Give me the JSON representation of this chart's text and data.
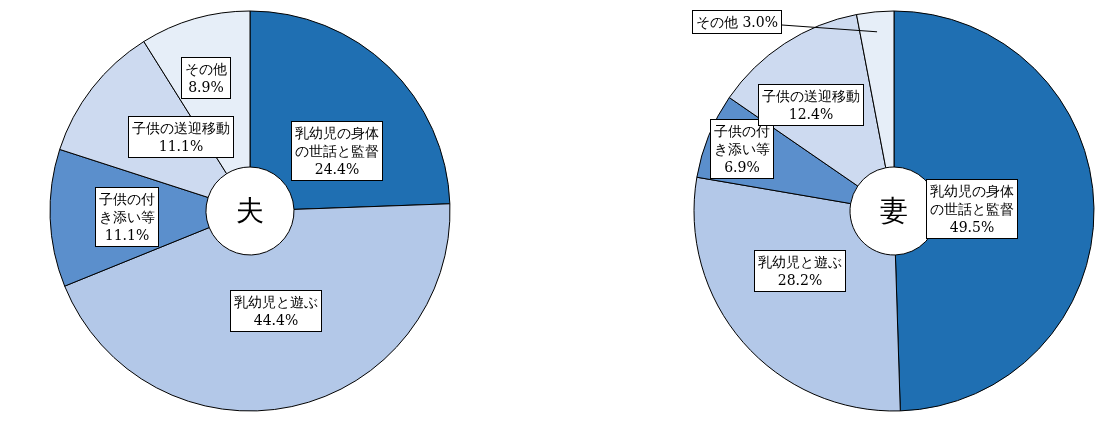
{
  "chart_data": [
    {
      "type": "donut",
      "title": "夫",
      "categories": [
        "乳幼児の身体の世話と監督",
        "乳幼児と遊ぶ",
        "子供の付き添い等",
        "子供の送迎移動",
        "その他"
      ],
      "values": [
        24.4,
        44.4,
        11.1,
        11.1,
        8.9
      ],
      "value_labels": [
        "24.4%",
        "44.4%",
        "11.1%",
        "11.1%",
        "8.9%"
      ],
      "colors": [
        "#1f6fb2",
        "#b3c8e8",
        "#5b8fcc",
        "#cddaf0",
        "#e6eef8"
      ]
    },
    {
      "type": "donut",
      "title": "妻",
      "categories": [
        "乳幼児の身体の世話と監督",
        "乳幼児と遊ぶ",
        "子供の付き添い等",
        "子供の送迎移動",
        "その他"
      ],
      "values": [
        49.5,
        28.2,
        6.9,
        12.4,
        3.0
      ],
      "value_labels": [
        "49.5%",
        "28.2%",
        "6.9%",
        "12.4%",
        "3.0%"
      ],
      "colors": [
        "#1f6fb2",
        "#b3c8e8",
        "#5b8fcc",
        "#cddaf0",
        "#e6eef8"
      ]
    }
  ]
}
